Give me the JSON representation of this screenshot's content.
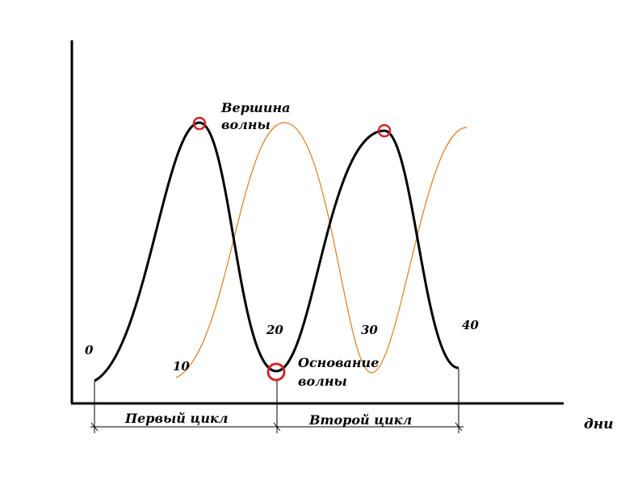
{
  "axis": {
    "x_label": "дни"
  },
  "day_labels": [
    "0",
    "10",
    "20",
    "30",
    "40"
  ],
  "annotations": {
    "peak": [
      "Вершина",
      "волны"
    ],
    "base": [
      "Основание",
      "волны"
    ]
  },
  "cycles": [
    "Первый цикл",
    "Второй цикл"
  ],
  "colors": {
    "main_wave": "#000000",
    "shifted_wave": "#e07b1f",
    "markers": "#d0242c",
    "axes": "#000000"
  }
}
